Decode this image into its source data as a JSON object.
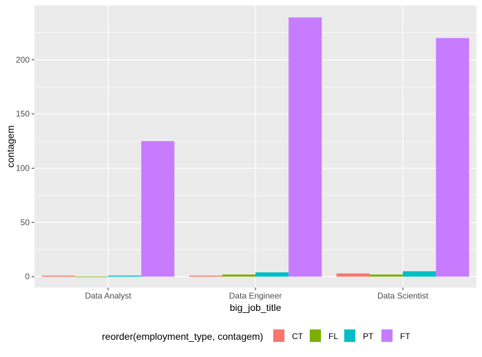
{
  "chart_data": {
    "type": "bar",
    "categories": [
      "Data Analyst",
      "Data Engineer",
      "Data Scientist"
    ],
    "series": [
      {
        "name": "CT",
        "values": [
          1,
          1,
          3
        ],
        "color": "#F8766D"
      },
      {
        "name": "FL",
        "values": [
          0,
          2,
          2
        ],
        "color": "#7CAE00"
      },
      {
        "name": "PT",
        "values": [
          1,
          4,
          5
        ],
        "color": "#00BFC4"
      },
      {
        "name": "FT",
        "values": [
          125,
          239,
          220
        ],
        "color": "#C77CFF"
      }
    ],
    "xlabel": "big_job_title",
    "ylabel": "contagem",
    "ylim": [
      -10,
      250
    ],
    "yticks": [
      0,
      50,
      100,
      150,
      200
    ],
    "grid": true,
    "panel_background": "#EBEBEB",
    "legend": {
      "title": "reorder(employment_type, contagem)",
      "position": "bottom",
      "entries": [
        "CT",
        "FL",
        "PT",
        "FT"
      ]
    }
  }
}
